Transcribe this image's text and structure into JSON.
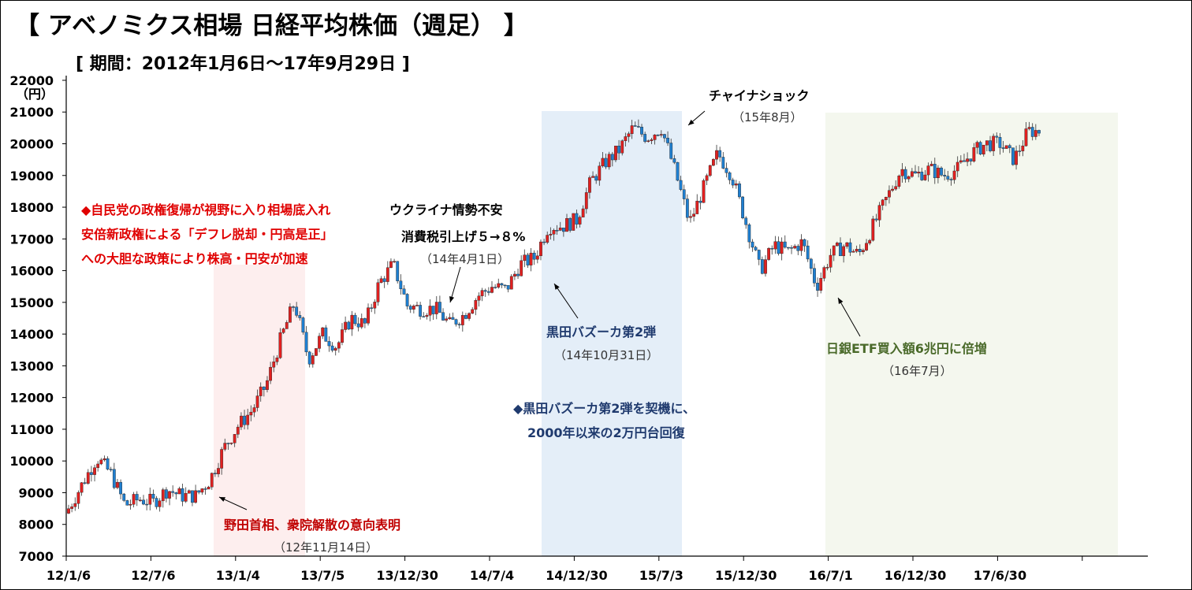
{
  "title": "【 アベノミクス相場 日経平均株価（週足） 】",
  "subtitle": "[ 期間：2012年1月6日～17年9月29日 ]",
  "chart_data": {
    "type": "candlestick",
    "frequency": "weekly (monthly closes listed, approximate)",
    "ylabel": "（円）",
    "ylim": [
      7000,
      22000
    ],
    "yticks": [
      7000,
      8000,
      9000,
      10000,
      11000,
      12000,
      13000,
      14000,
      15000,
      16000,
      17000,
      18000,
      19000,
      20000,
      21000,
      22000
    ],
    "xtick_labels": [
      "12/1/6",
      "12/7/6",
      "13/1/4",
      "13/7/5",
      "13/12/30",
      "14/7/4",
      "14/12/30",
      "15/7/3",
      "15/12/30",
      "16/7/1",
      "16/12/30",
      "17/6/30",
      ""
    ],
    "months": [
      "2012-01",
      "2012-02",
      "2012-03",
      "2012-04",
      "2012-05",
      "2012-06",
      "2012-07",
      "2012-08",
      "2012-09",
      "2012-10",
      "2012-11",
      "2012-12",
      "2013-01",
      "2013-02",
      "2013-03",
      "2013-04",
      "2013-05",
      "2013-06",
      "2013-07",
      "2013-08",
      "2013-09",
      "2013-10",
      "2013-11",
      "2013-12",
      "2014-01",
      "2014-02",
      "2014-03",
      "2014-04",
      "2014-05",
      "2014-06",
      "2014-07",
      "2014-08",
      "2014-09",
      "2014-10",
      "2014-11",
      "2014-12",
      "2015-01",
      "2015-02",
      "2015-03",
      "2015-04",
      "2015-05",
      "2015-06",
      "2015-07",
      "2015-08",
      "2015-09",
      "2015-10",
      "2015-11",
      "2015-12",
      "2016-01",
      "2016-02",
      "2016-03",
      "2016-04",
      "2016-05",
      "2016-06",
      "2016-07",
      "2016-08",
      "2016-09",
      "2016-10",
      "2016-11",
      "2016-12",
      "2017-01",
      "2017-02",
      "2017-03",
      "2017-04",
      "2017-05",
      "2017-06",
      "2017-07",
      "2017-08",
      "2017-09"
    ],
    "monthly_close": [
      8500,
      9300,
      10100,
      9600,
      8600,
      8800,
      8700,
      9100,
      8900,
      8900,
      9400,
      10400,
      11100,
      11600,
      12400,
      13800,
      15000,
      13200,
      14000,
      13600,
      14500,
      14300,
      15600,
      16200,
      14900,
      14800,
      14800,
      14300,
      14600,
      15200,
      15500,
      15400,
      16200,
      16400,
      17400,
      17400,
      17600,
      18800,
      19400,
      19800,
      20500,
      20200,
      20500,
      19100,
      17500,
      18600,
      19700,
      19000,
      17500,
      16000,
      16800,
      16600,
      16900,
      15500,
      16500,
      16800,
      16500,
      17400,
      18300,
      19200,
      19000,
      19200,
      19000,
      19200,
      19700,
      20000,
      20000,
      19500,
      20400
    ],
    "colors": {
      "up": "#e02020",
      "down": "#1f7fd0"
    },
    "shaded_periods": [
      {
        "from": "2012-11",
        "to": "2013-05",
        "color": "#fdeeee"
      },
      {
        "from": "2014-10",
        "to": "2015-08",
        "color": "#e4eef8"
      },
      {
        "from": "2016-07",
        "to": "2017-12",
        "color": "#f4f7ee"
      }
    ],
    "annotations": {
      "red_note": [
        "◆自民党の政権復帰が視野に入り相場底入れ",
        "安倍新政権による「デフレ脱却・円高是正」",
        "への大胆な政策により株高・円安が加速"
      ],
      "noda": "野田首相、衆院解散の意向表明",
      "noda_date": "（12年11月14日）",
      "ukraine": "ウクライナ情勢不安",
      "tax": "消費税引上げ５→８%",
      "tax_date": "（14年4月1日）",
      "kuroda": "黒田バズーカ第2弾",
      "kuroda_date": "（14年10月31日）",
      "kuroda_note": [
        "◆黒田バズーカ第2弾を契機に、",
        "2000年以来の2万円台回復"
      ],
      "china": "チャイナショック",
      "china_date": "（15年8月）",
      "boj": "日銀ETF買入額6兆円に倍増",
      "boj_date": "（16年7月）"
    }
  }
}
